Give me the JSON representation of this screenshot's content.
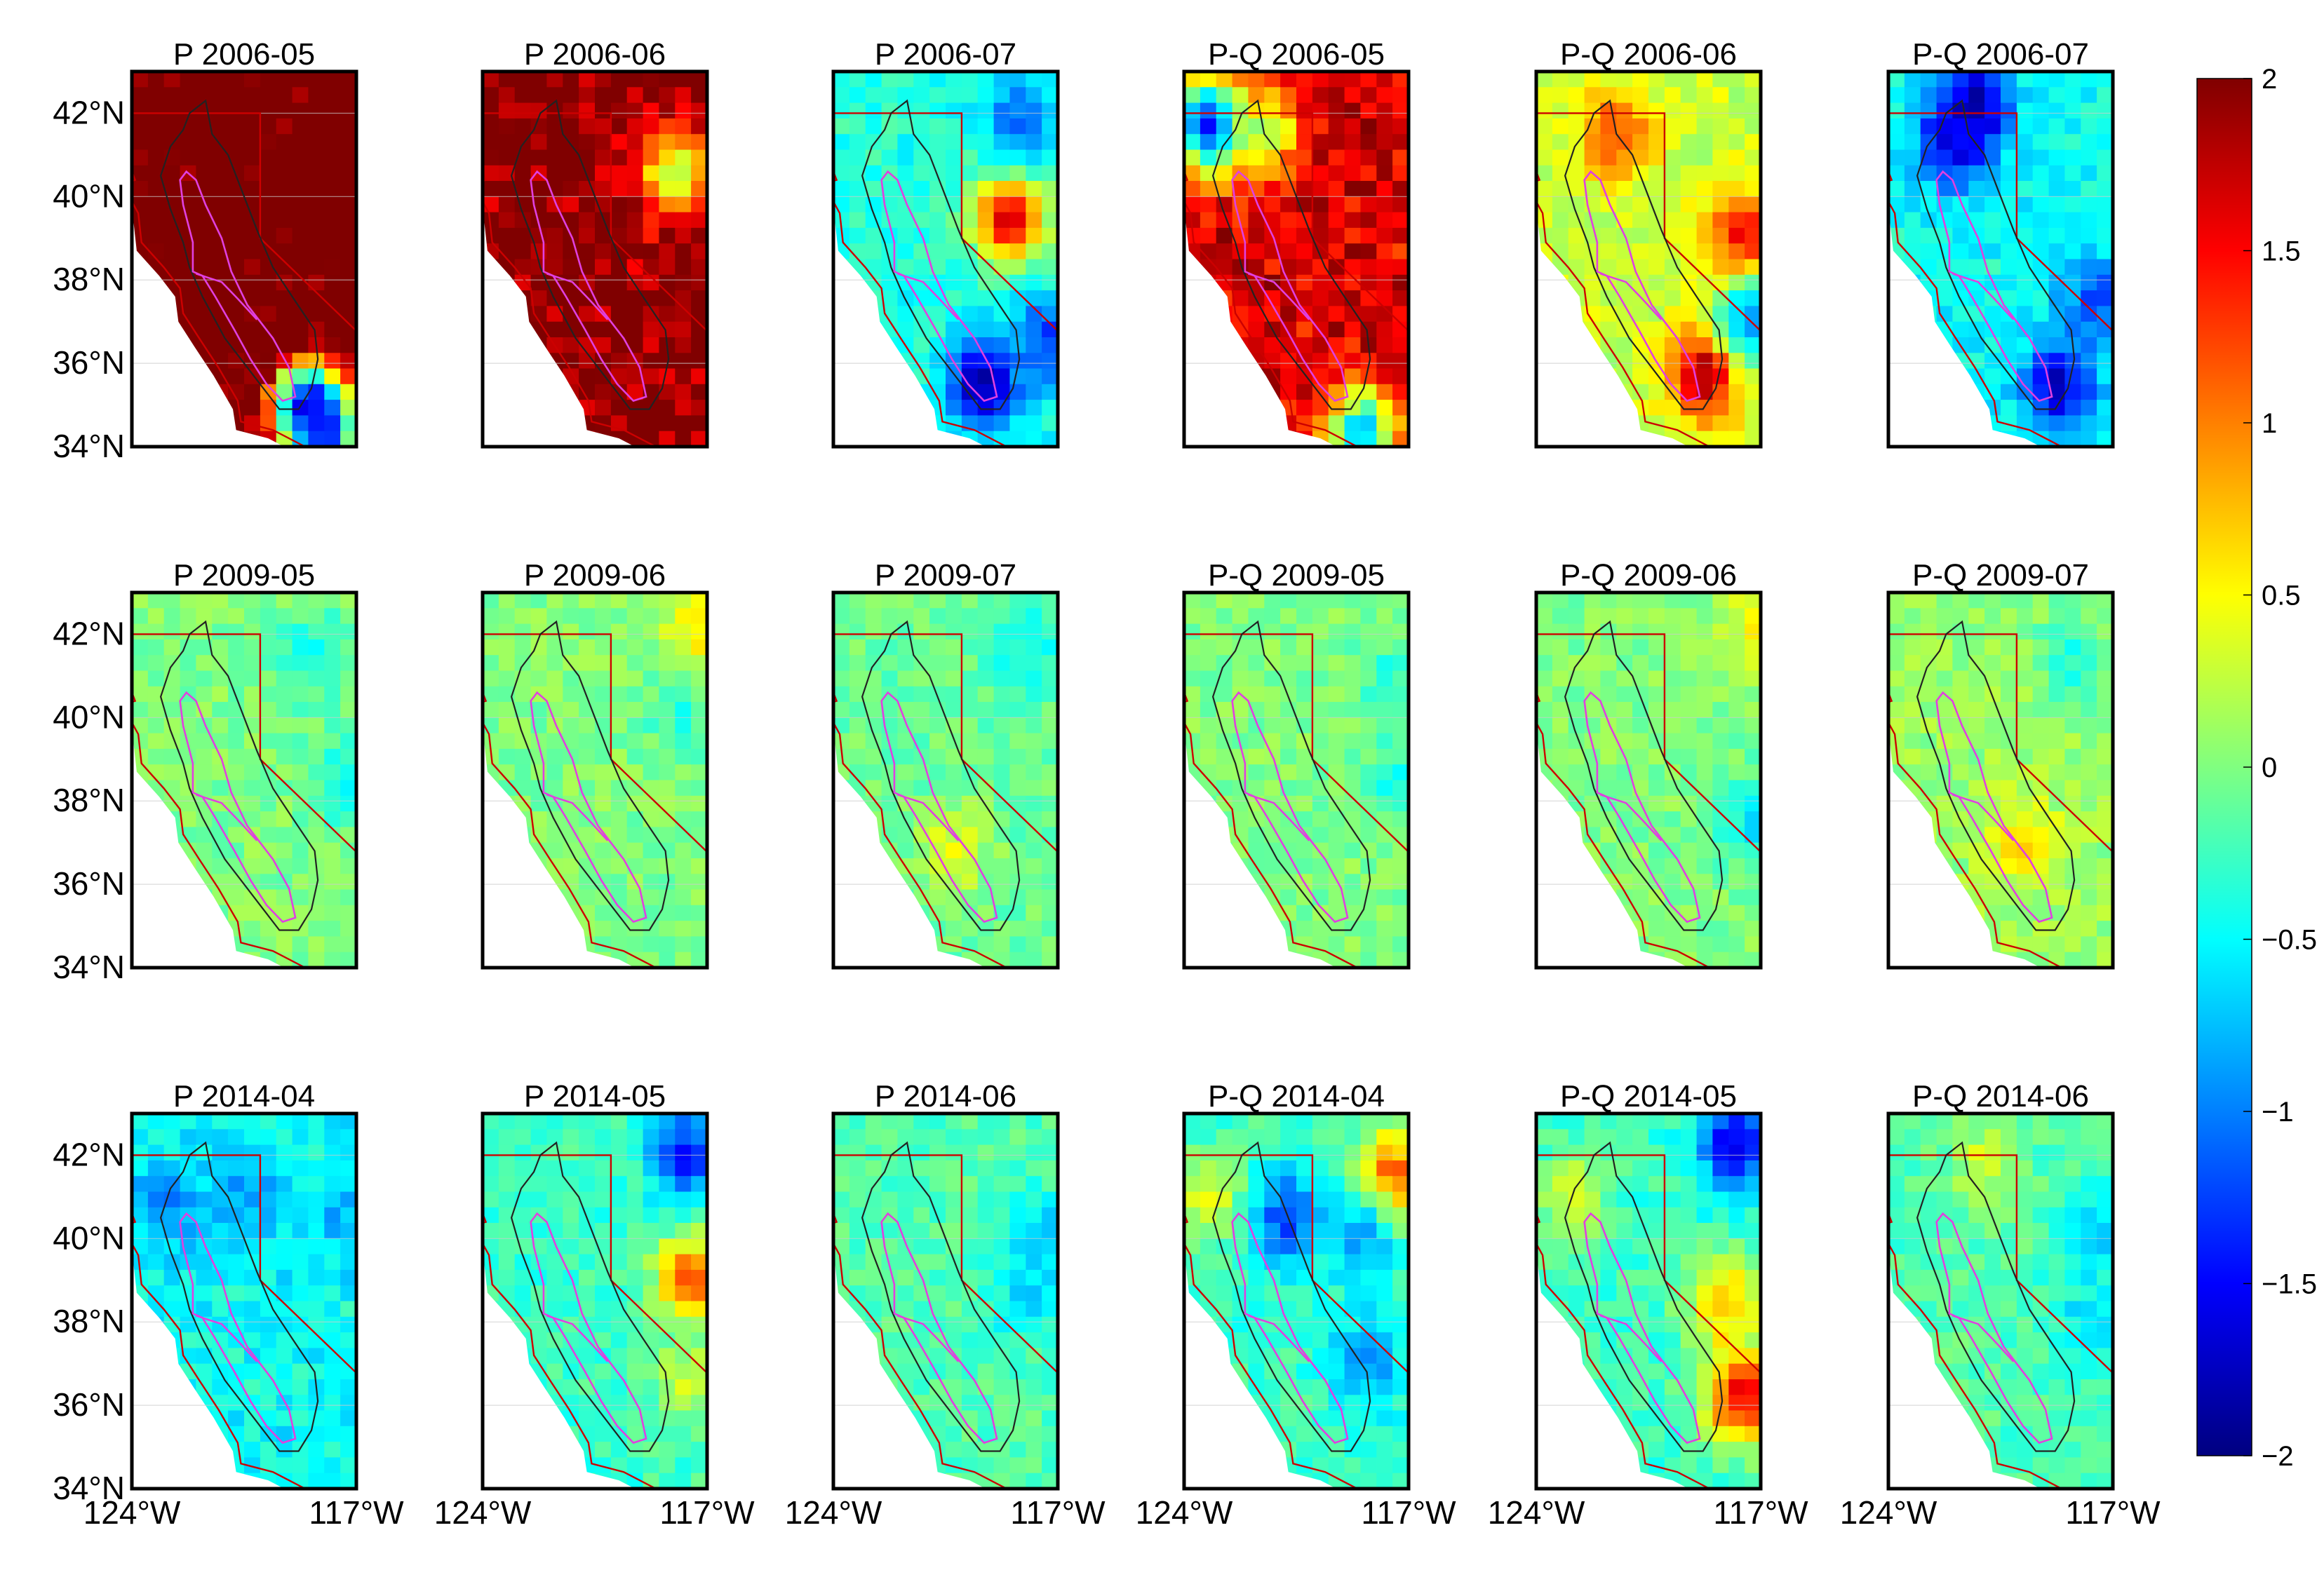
{
  "figure": {
    "rows": [
      {
        "panels": [
          {
            "title": "P 2006-05",
            "intensity": 2.6,
            "hotspots": [
              {
                "lat": 35.0,
                "lon": -118.5,
                "v": -1.6
              },
              {
                "lat": 34.3,
                "lon": -118.0,
                "v": -1.4
              }
            ]
          },
          {
            "title": "P 2006-06",
            "intensity": 2.2,
            "hotspots": [
              {
                "lat": 40.5,
                "lon": -118.0,
                "v": 0.2
              }
            ]
          },
          {
            "title": "P 2006-07",
            "intensity": -0.4,
            "hotspots": [
              {
                "lat": 35.5,
                "lon": -119.3,
                "v": -1.9
              },
              {
                "lat": 36.6,
                "lon": -117.2,
                "v": -1.3
              },
              {
                "lat": 39.5,
                "lon": -118.5,
                "v": 1.6
              },
              {
                "lat": 41.8,
                "lon": -118.3,
                "v": -1.1
              }
            ]
          },
          {
            "title": "P-Q 2006-05",
            "intensity": 1.8,
            "hotspots": [
              {
                "lat": 41.7,
                "lon": -123.2,
                "v": -1.5
              },
              {
                "lat": 41.5,
                "lon": -121.5,
                "v": 0.1
              },
              {
                "lat": 34.3,
                "lon": -118.5,
                "v": -0.8
              }
            ]
          },
          {
            "title": "P-Q 2006-06",
            "intensity": 0.3,
            "hotspots": [
              {
                "lat": 35.8,
                "lon": -118.7,
                "v": 2.0
              },
              {
                "lat": 39.0,
                "lon": -117.5,
                "v": 1.6
              },
              {
                "lat": 41.5,
                "lon": -121.5,
                "v": 1.2
              },
              {
                "lat": 37.0,
                "lon": -117.3,
                "v": -0.9
              }
            ]
          },
          {
            "title": "P-Q 2006-07",
            "intensity": -0.5,
            "hotspots": [
              {
                "lat": 42.2,
                "lon": -121.3,
                "v": -1.9
              },
              {
                "lat": 41.3,
                "lon": -122.0,
                "v": -1.6
              },
              {
                "lat": 35.5,
                "lon": -118.7,
                "v": -1.7
              },
              {
                "lat": 37.5,
                "lon": -117.5,
                "v": -1.2
              }
            ]
          }
        ]
      },
      {
        "panels": [
          {
            "title": "P 2009-05",
            "intensity": 0.0,
            "hotspots": [
              {
                "lat": 41.5,
                "lon": -118.3,
                "v": -0.4
              },
              {
                "lat": 38.5,
                "lon": -117.3,
                "v": -0.5
              }
            ]
          },
          {
            "title": "P 2009-06",
            "intensity": 0.0,
            "hotspots": [
              {
                "lat": 42.2,
                "lon": -117.2,
                "v": 0.6
              },
              {
                "lat": 40.0,
                "lon": -117.8,
                "v": -0.3
              }
            ]
          },
          {
            "title": "P 2009-07",
            "intensity": -0.1,
            "hotspots": [
              {
                "lat": 41.8,
                "lon": -118.0,
                "v": -0.5
              },
              {
                "lat": 36.8,
                "lon": -120.2,
                "v": 0.4
              }
            ]
          },
          {
            "title": "P-Q 2009-05",
            "intensity": 0.0,
            "hotspots": [
              {
                "lat": 41.0,
                "lon": -117.5,
                "v": -0.3
              },
              {
                "lat": 38.5,
                "lon": -117.3,
                "v": -0.4
              }
            ]
          },
          {
            "title": "P-Q 2009-06",
            "intensity": 0.0,
            "hotspots": [
              {
                "lat": 42.3,
                "lon": -117.2,
                "v": 0.5
              },
              {
                "lat": 37.5,
                "lon": -117.2,
                "v": -0.6
              }
            ]
          },
          {
            "title": "P-Q 2009-07",
            "intensity": 0.1,
            "hotspots": [
              {
                "lat": 37.0,
                "lon": -119.8,
                "v": 0.6
              },
              {
                "lat": 41.5,
                "lon": -118.3,
                "v": -0.4
              }
            ]
          }
        ]
      },
      {
        "panels": [
          {
            "title": "P 2014-04",
            "intensity": -0.5,
            "hotspots": [
              {
                "lat": 40.8,
                "lon": -122.8,
                "v": -1.0
              },
              {
                "lat": 41.2,
                "lon": -120.5,
                "v": -0.9
              },
              {
                "lat": 40.5,
                "lon": -117.6,
                "v": -0.8
              }
            ]
          },
          {
            "title": "P 2014-05",
            "intensity": -0.3,
            "hotspots": [
              {
                "lat": 42.0,
                "lon": -117.7,
                "v": -1.4
              },
              {
                "lat": 39.0,
                "lon": -117.5,
                "v": 1.1
              },
              {
                "lat": 36.5,
                "lon": -117.6,
                "v": 0.3
              }
            ]
          },
          {
            "title": "P 2014-06",
            "intensity": -0.2,
            "hotspots": [
              {
                "lat": 40.0,
                "lon": -117.5,
                "v": -0.7
              },
              {
                "lat": 38.5,
                "lon": -118.0,
                "v": -0.6
              }
            ]
          },
          {
            "title": "P-Q 2014-04",
            "intensity": -0.3,
            "hotspots": [
              {
                "lat": 41.5,
                "lon": -117.5,
                "v": 1.2
              },
              {
                "lat": 40.5,
                "lon": -120.8,
                "v": -1.3
              },
              {
                "lat": 40.0,
                "lon": -118.5,
                "v": -0.8
              },
              {
                "lat": 41.0,
                "lon": -123.3,
                "v": 0.4
              },
              {
                "lat": 37.0,
                "lon": -118.3,
                "v": -0.9
              }
            ]
          },
          {
            "title": "P-Q 2014-05",
            "intensity": -0.3,
            "hotspots": [
              {
                "lat": 42.2,
                "lon": -117.8,
                "v": -1.6
              },
              {
                "lat": 38.5,
                "lon": -118.2,
                "v": 0.8
              },
              {
                "lat": 36.2,
                "lon": -117.6,
                "v": 1.6
              },
              {
                "lat": 41.0,
                "lon": -122.8,
                "v": 0.3
              }
            ]
          },
          {
            "title": "P-Q 2014-06",
            "intensity": -0.2,
            "hotspots": [
              {
                "lat": 41.8,
                "lon": -121.0,
                "v": 0.3
              },
              {
                "lat": 40.0,
                "lon": -117.5,
                "v": -0.7
              },
              {
                "lat": 38.0,
                "lon": -117.8,
                "v": -0.6
              }
            ]
          }
        ]
      }
    ],
    "lat_ticks": [
      "34°N",
      "36°N",
      "38°N",
      "40°N",
      "42°N"
    ],
    "lat_tick_values": [
      34,
      36,
      38,
      40,
      42
    ],
    "lon_ticks": [
      "124°W",
      "117°W"
    ],
    "lon_tick_values": [
      -124,
      -117
    ],
    "extent": {
      "lon_min": -124.0,
      "lon_max": -117.0,
      "lat_min": 34.0,
      "lat_max": 43.0
    },
    "colorbar": {
      "min": -2,
      "max": 2,
      "ticks": [
        "2",
        "1.5",
        "1",
        "0.5",
        "0",
        "−0.5",
        "−1",
        "−1.5",
        "−2"
      ],
      "tick_values": [
        2,
        1.5,
        1,
        0.5,
        0,
        -0.5,
        -1,
        -1.5,
        -2
      ],
      "colormap": "jet"
    },
    "colors": {
      "frame": "#000000",
      "state_border": "#cc0000",
      "coastline": "#cc0000",
      "basin_outline": "#222222",
      "valley_outline": "#e040e0",
      "gridline": "#cccccc"
    }
  }
}
